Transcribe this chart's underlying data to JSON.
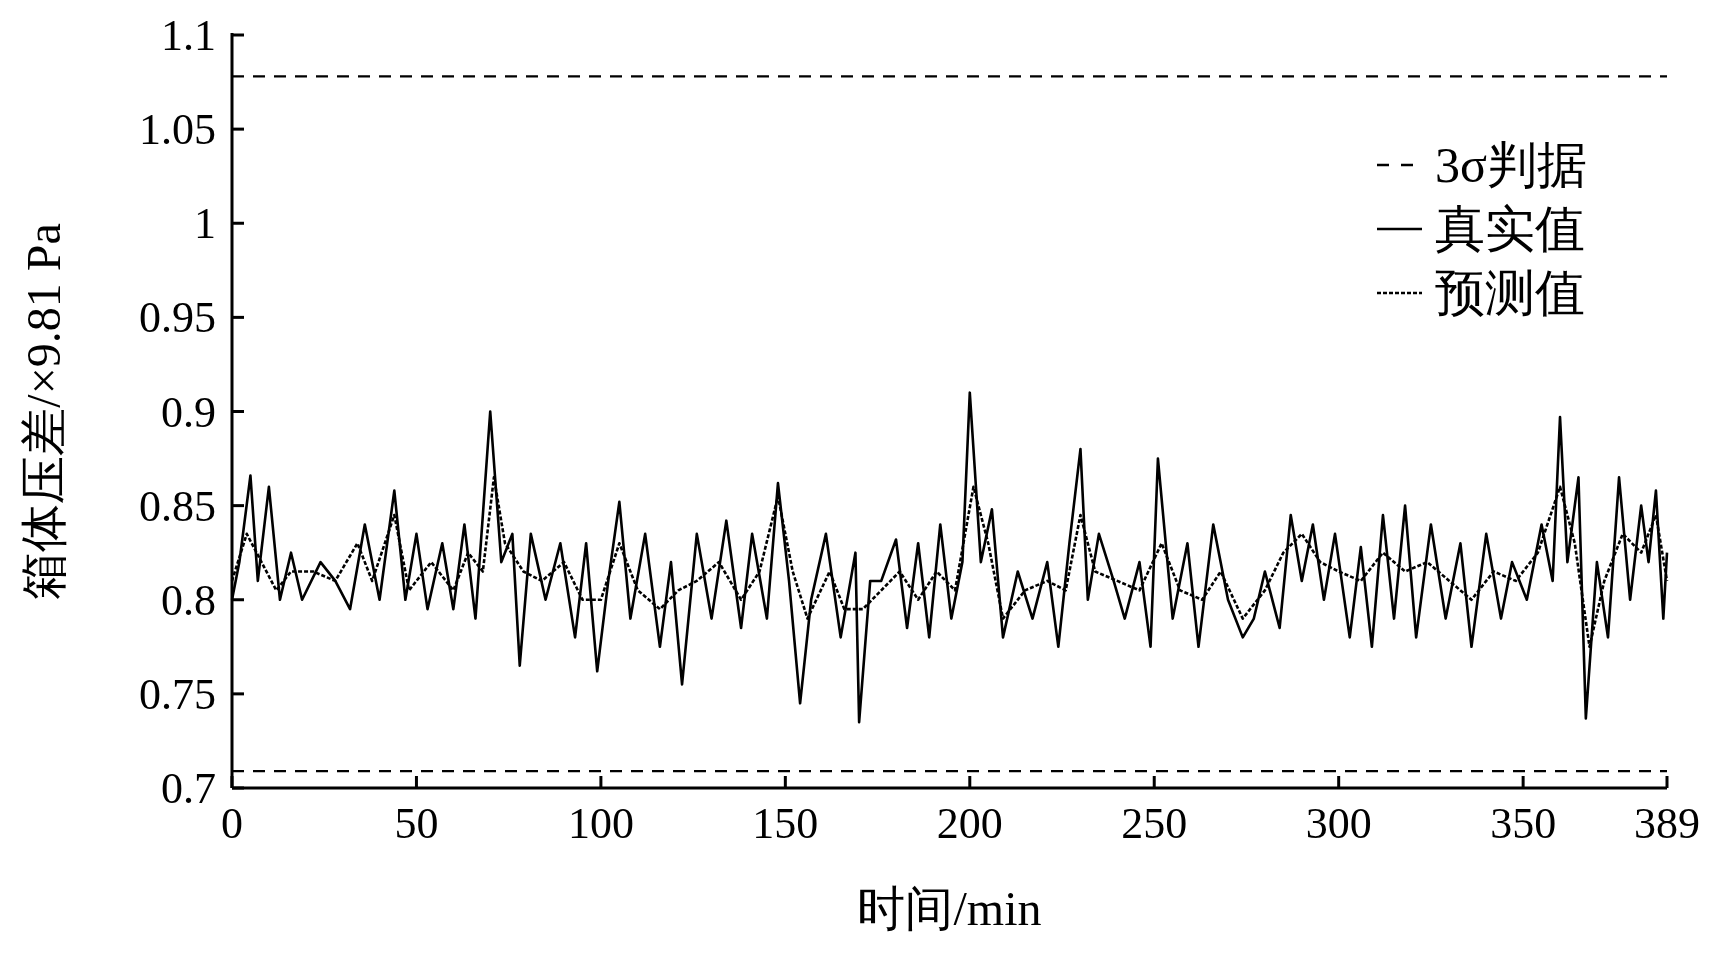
{
  "chart_data": {
    "type": "line",
    "xlabel": "时间/min",
    "ylabel": "箱体压差/×9.81 Pa",
    "xlim": [
      0,
      389
    ],
    "xticks": [
      0,
      50,
      100,
      150,
      200,
      250,
      300,
      350,
      389
    ],
    "ylim": [
      0.7,
      1.1
    ],
    "yticks": [
      0.7,
      0.75,
      0.8,
      0.85,
      0.9,
      0.95,
      1,
      1.05,
      1.1
    ],
    "grid": false,
    "legend": "top right",
    "marker": "none",
    "series": [
      {
        "name": "真实值",
        "color": "#000000",
        "line_style": "solid",
        "x": [
          0,
          2,
          5,
          7,
          10,
          13,
          16,
          19,
          24,
          28,
          32,
          36,
          40,
          44,
          47,
          50,
          53,
          57,
          60,
          63,
          66,
          70,
          73,
          76,
          78,
          81,
          85,
          89,
          93,
          96,
          99,
          102,
          105,
          108,
          112,
          116,
          119,
          122,
          126,
          130,
          134,
          138,
          141,
          145,
          148,
          151,
          154,
          157,
          161,
          165,
          169,
          170,
          173,
          176,
          180,
          183,
          186,
          189,
          192,
          195,
          198,
          200,
          203,
          206,
          209,
          213,
          217,
          221,
          224,
          227,
          230,
          232,
          235,
          239,
          242,
          246,
          249,
          251,
          255,
          259,
          262,
          266,
          270,
          274,
          277,
          280,
          284,
          287,
          290,
          293,
          296,
          299,
          303,
          306,
          309,
          312,
          315,
          318,
          321,
          325,
          329,
          333,
          336,
          340,
          344,
          347,
          351,
          355,
          358,
          360,
          362,
          365,
          367,
          370,
          373,
          376,
          379,
          382,
          384,
          386,
          388,
          389
        ],
        "values": [
          0.8,
          0.82,
          0.866,
          0.81,
          0.86,
          0.8,
          0.825,
          0.8,
          0.82,
          0.81,
          0.795,
          0.84,
          0.8,
          0.858,
          0.8,
          0.835,
          0.795,
          0.83,
          0.795,
          0.84,
          0.79,
          0.9,
          0.82,
          0.835,
          0.765,
          0.835,
          0.8,
          0.83,
          0.78,
          0.83,
          0.762,
          0.81,
          0.852,
          0.79,
          0.835,
          0.775,
          0.82,
          0.755,
          0.835,
          0.79,
          0.842,
          0.785,
          0.835,
          0.79,
          0.862,
          0.81,
          0.745,
          0.8,
          0.835,
          0.78,
          0.825,
          0.735,
          0.81,
          0.81,
          0.832,
          0.785,
          0.83,
          0.78,
          0.84,
          0.79,
          0.82,
          0.91,
          0.82,
          0.848,
          0.78,
          0.815,
          0.79,
          0.82,
          0.775,
          0.83,
          0.88,
          0.8,
          0.835,
          0.81,
          0.79,
          0.82,
          0.775,
          0.875,
          0.79,
          0.83,
          0.775,
          0.84,
          0.8,
          0.78,
          0.79,
          0.815,
          0.785,
          0.845,
          0.81,
          0.84,
          0.8,
          0.835,
          0.78,
          0.828,
          0.775,
          0.845,
          0.79,
          0.85,
          0.78,
          0.84,
          0.79,
          0.83,
          0.775,
          0.835,
          0.79,
          0.82,
          0.8,
          0.84,
          0.81,
          0.897,
          0.82,
          0.865,
          0.737,
          0.82,
          0.78,
          0.865,
          0.8,
          0.85,
          0.82,
          0.858,
          0.79,
          0.825
        ]
      },
      {
        "name": "预测值",
        "color": "#000000",
        "line_style": "dotted",
        "x": [
          0,
          4,
          8,
          12,
          16,
          22,
          28,
          34,
          38,
          44,
          48,
          54,
          60,
          64,
          68,
          71,
          74,
          79,
          84,
          90,
          95,
          100,
          105,
          110,
          116,
          121,
          126,
          132,
          138,
          143,
          148,
          152,
          156,
          162,
          166,
          171,
          176,
          181,
          186,
          191,
          196,
          201,
          205,
          209,
          215,
          221,
          226,
          230,
          234,
          240,
          246,
          252,
          257,
          263,
          268,
          274,
          280,
          285,
          290,
          295,
          300,
          306,
          312,
          318,
          324,
          330,
          336,
          342,
          348,
          354,
          360,
          364,
          368,
          372,
          377,
          382,
          386,
          389
        ],
        "values": [
          0.81,
          0.835,
          0.82,
          0.805,
          0.815,
          0.815,
          0.81,
          0.83,
          0.81,
          0.845,
          0.805,
          0.82,
          0.805,
          0.825,
          0.815,
          0.865,
          0.83,
          0.815,
          0.81,
          0.82,
          0.8,
          0.8,
          0.83,
          0.805,
          0.795,
          0.805,
          0.81,
          0.82,
          0.8,
          0.815,
          0.855,
          0.815,
          0.79,
          0.815,
          0.795,
          0.795,
          0.805,
          0.815,
          0.8,
          0.815,
          0.805,
          0.86,
          0.83,
          0.79,
          0.805,
          0.81,
          0.805,
          0.845,
          0.815,
          0.81,
          0.805,
          0.83,
          0.805,
          0.8,
          0.815,
          0.79,
          0.805,
          0.825,
          0.835,
          0.82,
          0.815,
          0.81,
          0.825,
          0.815,
          0.82,
          0.81,
          0.8,
          0.815,
          0.81,
          0.825,
          0.86,
          0.83,
          0.775,
          0.81,
          0.835,
          0.825,
          0.845,
          0.81
        ]
      }
    ],
    "ref_lines": [
      {
        "axis": "y",
        "value": 1.078,
        "label": "3σ判据",
        "color": "#000000",
        "line_style": "dashed"
      },
      {
        "axis": "y",
        "value": 0.709,
        "color": "#000000",
        "line_style": "dashed"
      }
    ]
  }
}
